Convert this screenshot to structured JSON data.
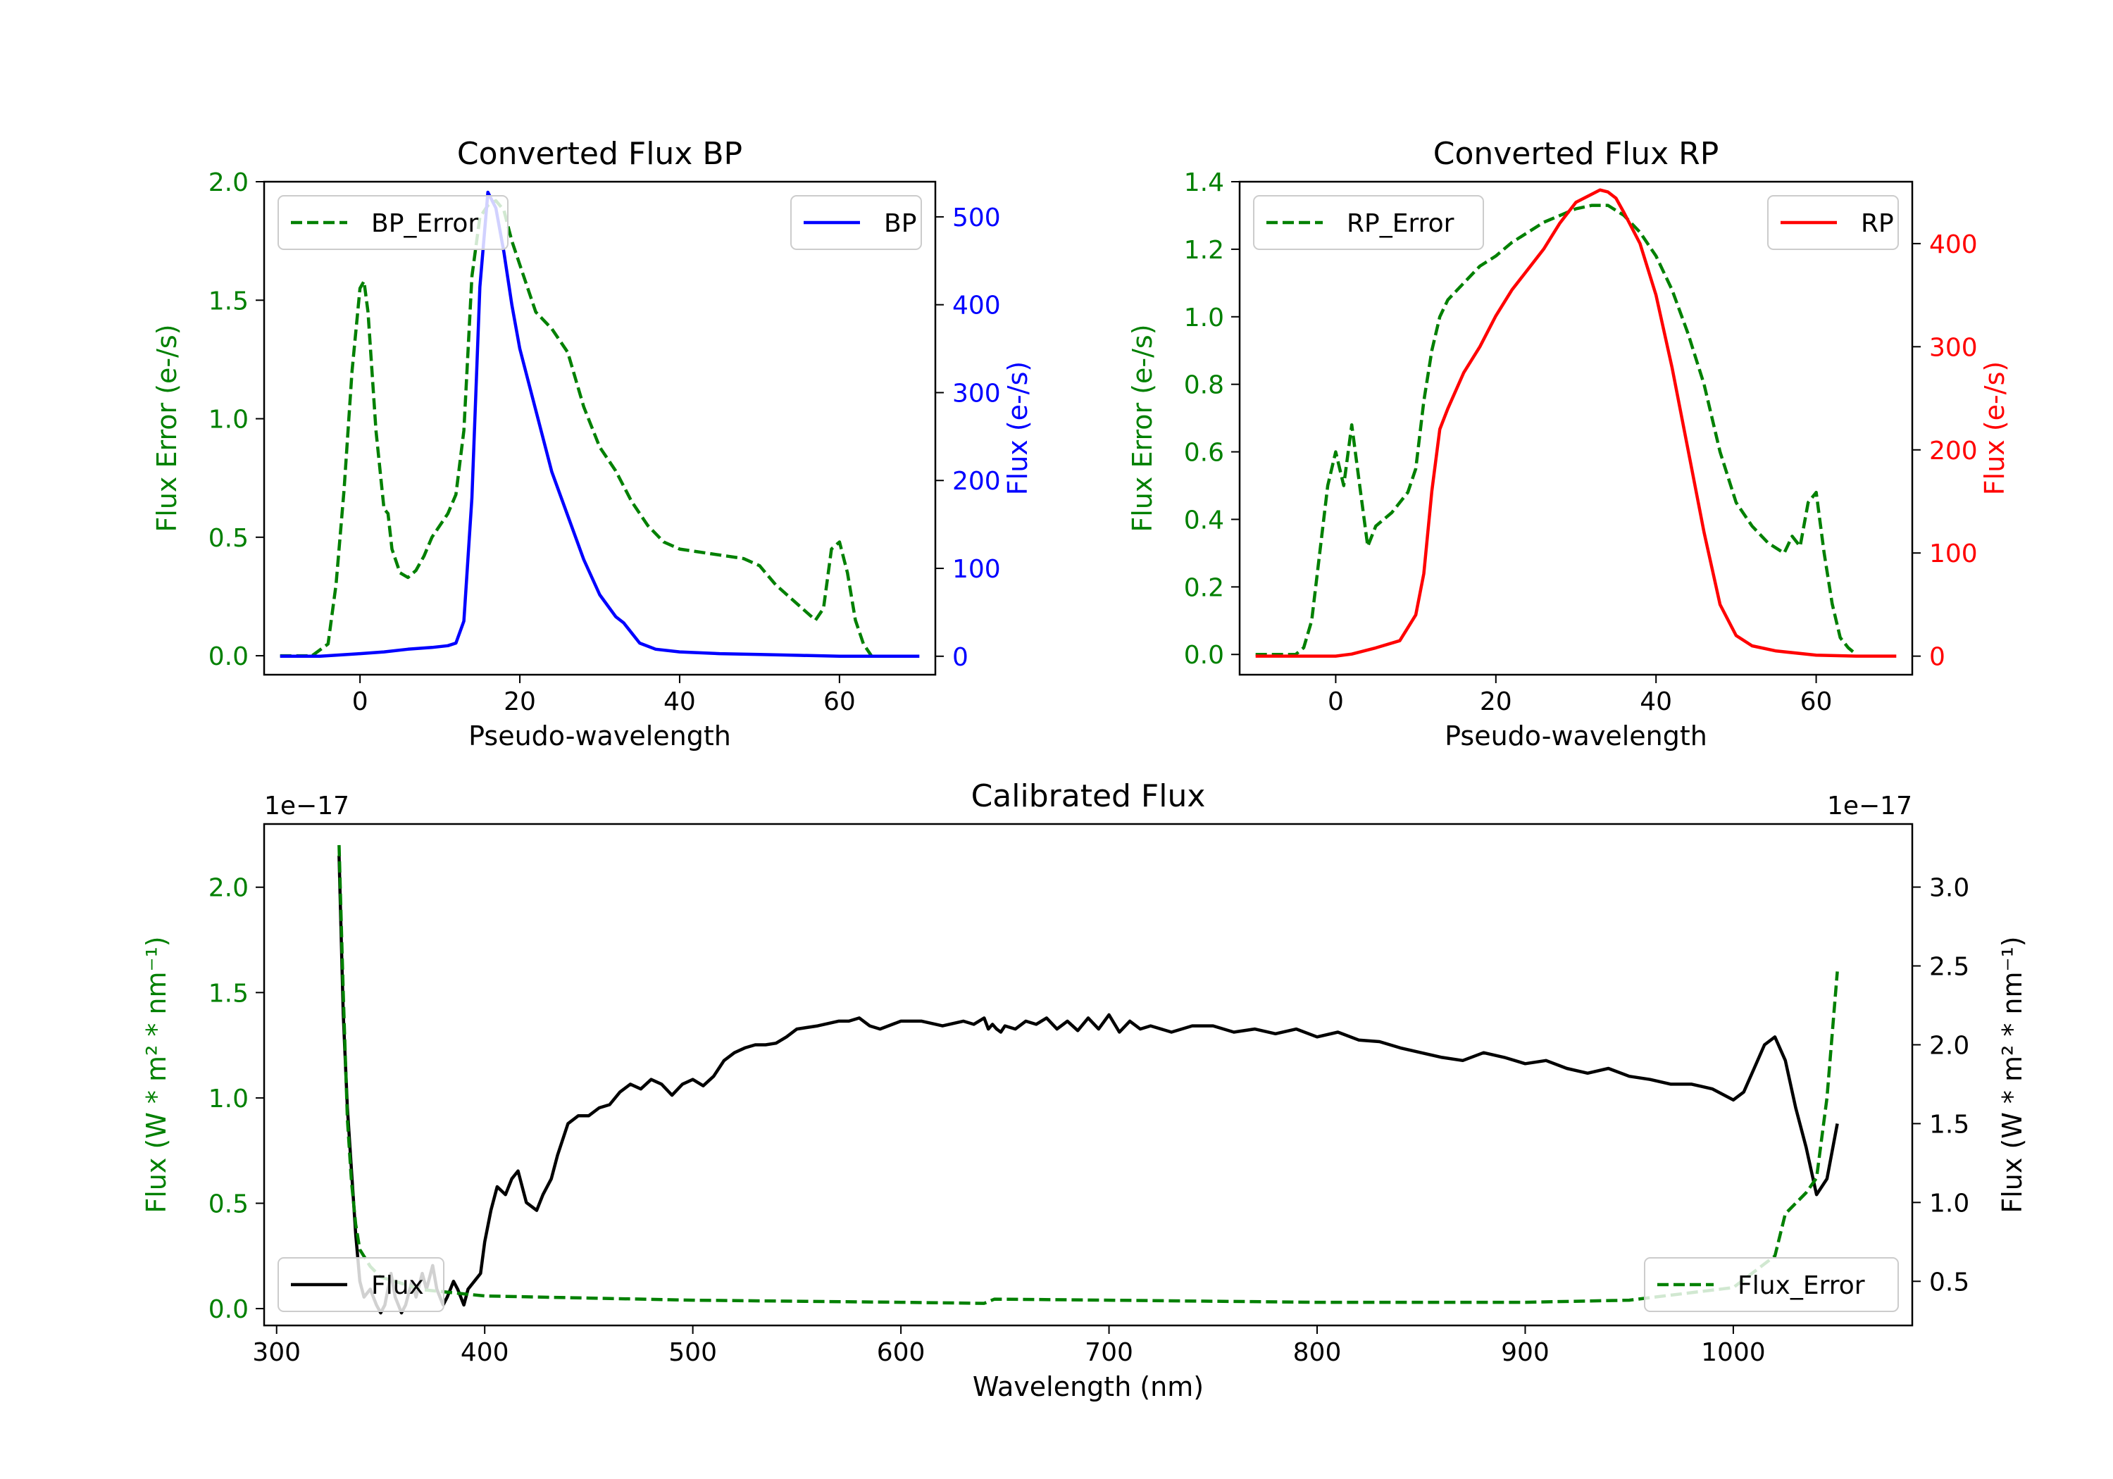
{
  "chart_data": [
    {
      "id": "bp",
      "type": "line",
      "title": "Converted Flux BP",
      "xlabel": "Pseudo-wavelength",
      "xlim": [
        -12,
        72
      ],
      "xticks": [
        0,
        20,
        40,
        60
      ],
      "left_axis": {
        "label": "Flux Error (e-/s)",
        "color": "#008000",
        "lim": [
          -0.08,
          2.0
        ],
        "ticks": [
          0.0,
          0.5,
          1.0,
          1.5,
          2.0
        ],
        "tick_labels": [
          "0.0",
          "0.5",
          "1.0",
          "1.5",
          "2.0"
        ]
      },
      "right_axis": {
        "label": "Flux (e-/s)",
        "color": "#0000ff",
        "lim": [
          -21,
          540
        ],
        "ticks": [
          0,
          100,
          200,
          300,
          400,
          500
        ],
        "tick_labels": [
          "0",
          "100",
          "200",
          "300",
          "400",
          "500"
        ]
      },
      "series": [
        {
          "name": "BP_Error",
          "axis": "left",
          "color": "#008000",
          "style": "dashed",
          "x": [
            -10,
            -6,
            -4,
            -3,
            -2,
            -1,
            0,
            0.5,
            1,
            2,
            3,
            3.5,
            4,
            5,
            6,
            7,
            8,
            9,
            10,
            11,
            12,
            13,
            14,
            15,
            16,
            17,
            18,
            19,
            20,
            22,
            24,
            26,
            28,
            30,
            32,
            34,
            36,
            38,
            40,
            42,
            44,
            46,
            48,
            50,
            52,
            54,
            56,
            57,
            58,
            59,
            60,
            61,
            62,
            63,
            64
          ],
          "values": [
            0.0,
            0.0,
            0.05,
            0.3,
            0.7,
            1.2,
            1.55,
            1.58,
            1.45,
            0.95,
            0.62,
            0.6,
            0.45,
            0.35,
            0.33,
            0.36,
            0.42,
            0.5,
            0.55,
            0.6,
            0.68,
            0.95,
            1.6,
            1.85,
            1.9,
            1.92,
            1.88,
            1.75,
            1.65,
            1.45,
            1.38,
            1.28,
            1.05,
            0.88,
            0.78,
            0.65,
            0.55,
            0.48,
            0.45,
            0.44,
            0.43,
            0.42,
            0.41,
            0.38,
            0.3,
            0.24,
            0.18,
            0.15,
            0.2,
            0.45,
            0.48,
            0.35,
            0.15,
            0.05,
            0.0
          ]
        },
        {
          "name": "BP",
          "axis": "right",
          "color": "#0000ff",
          "style": "solid",
          "x": [
            -10,
            -5,
            0,
            3,
            6,
            9,
            11,
            12,
            13,
            14,
            15,
            16,
            17,
            18,
            19,
            20,
            22,
            24,
            26,
            28,
            30,
            32,
            33,
            35,
            37,
            40,
            45,
            50,
            55,
            60,
            65,
            70
          ],
          "values": [
            0,
            0,
            3,
            5,
            8,
            10,
            12,
            15,
            40,
            180,
            420,
            528,
            510,
            460,
            400,
            350,
            280,
            210,
            160,
            110,
            70,
            45,
            38,
            15,
            8,
            5,
            3,
            2,
            1,
            0,
            0,
            0
          ]
        }
      ],
      "legends": [
        {
          "position": "upper-left",
          "entries": [
            "BP_Error"
          ]
        },
        {
          "position": "upper-right",
          "entries": [
            "BP"
          ]
        }
      ]
    },
    {
      "id": "rp",
      "type": "line",
      "title": "Converted Flux RP",
      "xlabel": "Pseudo-wavelength",
      "xlim": [
        -12,
        72
      ],
      "xticks": [
        0,
        20,
        40,
        60
      ],
      "left_axis": {
        "label": "Flux Error (e-/s)",
        "color": "#008000",
        "lim": [
          -0.06,
          1.4
        ],
        "ticks": [
          0.0,
          0.2,
          0.4,
          0.6,
          0.8,
          1.0,
          1.2,
          1.4
        ],
        "tick_labels": [
          "0.0",
          "0.2",
          "0.4",
          "0.6",
          "0.8",
          "1.0",
          "1.2",
          "1.4"
        ]
      },
      "right_axis": {
        "label": "Flux (e-/s)",
        "color": "#ff0000",
        "lim": [
          -18,
          460
        ],
        "ticks": [
          0,
          100,
          200,
          300,
          400
        ],
        "tick_labels": [
          "0",
          "100",
          "200",
          "300",
          "400"
        ]
      },
      "series": [
        {
          "name": "RP_Error",
          "axis": "left",
          "color": "#008000",
          "style": "dashed",
          "x": [
            -10,
            -5,
            -4,
            -3,
            -2,
            -1,
            0,
            1,
            2,
            3,
            4,
            5,
            6,
            7,
            8,
            9,
            10,
            11,
            12,
            13,
            14,
            16,
            18,
            20,
            22,
            24,
            26,
            28,
            30,
            32,
            34,
            36,
            38,
            40,
            42,
            44,
            46,
            48,
            50,
            52,
            54,
            56,
            57,
            58,
            59,
            60,
            61,
            62,
            63,
            64,
            65
          ],
          "values": [
            0.0,
            0.0,
            0.02,
            0.1,
            0.3,
            0.5,
            0.6,
            0.5,
            0.68,
            0.5,
            0.32,
            0.38,
            0.4,
            0.42,
            0.45,
            0.48,
            0.55,
            0.75,
            0.9,
            1.0,
            1.05,
            1.1,
            1.15,
            1.18,
            1.22,
            1.25,
            1.28,
            1.3,
            1.32,
            1.33,
            1.33,
            1.3,
            1.25,
            1.18,
            1.08,
            0.95,
            0.8,
            0.6,
            0.45,
            0.38,
            0.33,
            0.3,
            0.35,
            0.32,
            0.45,
            0.48,
            0.3,
            0.15,
            0.05,
            0.02,
            0.0
          ]
        },
        {
          "name": "RP",
          "axis": "right",
          "color": "#ff0000",
          "style": "solid",
          "x": [
            -10,
            -5,
            0,
            2,
            5,
            8,
            10,
            11,
            12,
            13,
            14,
            16,
            18,
            20,
            22,
            24,
            26,
            28,
            30,
            32,
            33,
            34,
            35,
            36,
            38,
            40,
            42,
            44,
            46,
            48,
            50,
            52,
            55,
            60,
            65,
            70
          ],
          "values": [
            0,
            0,
            0,
            2,
            8,
            15,
            40,
            80,
            160,
            220,
            240,
            275,
            300,
            330,
            355,
            375,
            395,
            420,
            440,
            448,
            452,
            450,
            444,
            430,
            400,
            350,
            280,
            200,
            120,
            50,
            20,
            10,
            5,
            1,
            0,
            0
          ]
        }
      ],
      "legends": [
        {
          "position": "upper-left",
          "entries": [
            "RP_Error"
          ]
        },
        {
          "position": "upper-right",
          "entries": [
            "RP"
          ]
        }
      ]
    },
    {
      "id": "cal",
      "type": "line",
      "title": "Calibrated Flux",
      "xlabel": "Wavelength (nm)",
      "xlim": [
        294,
        1086
      ],
      "xticks": [
        300,
        400,
        500,
        600,
        700,
        800,
        900,
        1000
      ],
      "left_axis": {
        "label": "Flux (W * m² * nm⁻¹)",
        "color": "#008000",
        "offset_text": "1e−17",
        "lim": [
          -0.08,
          2.3
        ],
        "ticks": [
          0.0,
          0.5,
          1.0,
          1.5,
          2.0
        ],
        "tick_labels": [
          "0.0",
          "0.5",
          "1.0",
          "1.5",
          "2.0"
        ]
      },
      "right_axis": {
        "label": "Flux (W * m² * nm⁻¹)",
        "color": "#000000",
        "offset_text": "1e−17",
        "lim": [
          0.22,
          3.4
        ],
        "ticks": [
          0.5,
          1.0,
          1.5,
          2.0,
          2.5,
          3.0
        ],
        "tick_labels": [
          "0.5",
          "1.0",
          "1.5",
          "2.0",
          "2.5",
          "3.0"
        ]
      },
      "series": [
        {
          "name": "Flux",
          "axis": "right",
          "color": "#000000",
          "style": "solid",
          "x": [
            330,
            332,
            334,
            336,
            338,
            340,
            342,
            345,
            348,
            350,
            352,
            355,
            357,
            360,
            362,
            365,
            367,
            370,
            372,
            375,
            377,
            380,
            382,
            385,
            387,
            390,
            392,
            395,
            398,
            400,
            403,
            406,
            410,
            413,
            416,
            420,
            425,
            428,
            432,
            435,
            440,
            445,
            450,
            455,
            460,
            465,
            470,
            475,
            480,
            485,
            490,
            495,
            500,
            505,
            510,
            515,
            520,
            525,
            530,
            535,
            540,
            545,
            550,
            560,
            570,
            575,
            580,
            585,
            590,
            600,
            610,
            620,
            630,
            635,
            640,
            642,
            644,
            646,
            648,
            650,
            655,
            660,
            665,
            670,
            675,
            680,
            685,
            690,
            695,
            700,
            705,
            710,
            715,
            720,
            730,
            740,
            750,
            760,
            770,
            780,
            790,
            800,
            810,
            820,
            830,
            840,
            850,
            860,
            870,
            880,
            890,
            900,
            910,
            920,
            930,
            940,
            950,
            960,
            970,
            980,
            990,
            1000,
            1005,
            1010,
            1015,
            1020,
            1025,
            1030,
            1035,
            1040,
            1045,
            1050
          ],
          "values": [
            3.2,
            2.2,
            1.6,
            1.2,
            0.8,
            0.5,
            0.4,
            0.45,
            0.35,
            0.3,
            0.35,
            0.55,
            0.4,
            0.3,
            0.35,
            0.5,
            0.4,
            0.55,
            0.45,
            0.6,
            0.45,
            0.35,
            0.4,
            0.5,
            0.45,
            0.35,
            0.45,
            0.5,
            0.55,
            0.75,
            0.95,
            1.1,
            1.05,
            1.15,
            1.2,
            1.0,
            0.95,
            1.05,
            1.15,
            1.3,
            1.5,
            1.55,
            1.55,
            1.6,
            1.62,
            1.7,
            1.75,
            1.72,
            1.78,
            1.75,
            1.68,
            1.75,
            1.78,
            1.74,
            1.8,
            1.9,
            1.95,
            1.98,
            2.0,
            2.0,
            2.01,
            2.05,
            2.1,
            2.12,
            2.15,
            2.15,
            2.17,
            2.12,
            2.1,
            2.15,
            2.15,
            2.12,
            2.15,
            2.13,
            2.17,
            2.1,
            2.13,
            2.1,
            2.08,
            2.12,
            2.1,
            2.15,
            2.13,
            2.17,
            2.1,
            2.15,
            2.09,
            2.17,
            2.1,
            2.19,
            2.08,
            2.15,
            2.1,
            2.12,
            2.08,
            2.12,
            2.12,
            2.08,
            2.1,
            2.07,
            2.1,
            2.05,
            2.08,
            2.03,
            2.02,
            1.98,
            1.95,
            1.92,
            1.9,
            1.95,
            1.92,
            1.88,
            1.9,
            1.85,
            1.82,
            1.85,
            1.8,
            1.78,
            1.75,
            1.75,
            1.72,
            1.65,
            1.7,
            1.85,
            2.0,
            2.05,
            1.9,
            1.6,
            1.35,
            1.05,
            1.15,
            1.5
          ],
          "legend_position": "lower-left"
        },
        {
          "name": "Flux_Error",
          "axis": "left",
          "color": "#008000",
          "style": "dashed",
          "x": [
            330,
            332,
            334,
            336,
            338,
            340,
            345,
            350,
            360,
            370,
            380,
            390,
            400,
            450,
            500,
            550,
            600,
            640,
            645,
            700,
            800,
            900,
            950,
            1000,
            1020,
            1025,
            1030,
            1035,
            1040,
            1045,
            1050
          ],
          "values": [
            2.2,
            1.5,
            0.9,
            0.6,
            0.4,
            0.28,
            0.2,
            0.15,
            0.12,
            0.09,
            0.08,
            0.07,
            0.06,
            0.05,
            0.04,
            0.035,
            0.03,
            0.025,
            0.045,
            0.04,
            0.03,
            0.03,
            0.04,
            0.1,
            0.25,
            0.45,
            0.5,
            0.55,
            0.62,
            1.0,
            1.6
          ],
          "legend_position": "lower-right"
        }
      ]
    }
  ]
}
